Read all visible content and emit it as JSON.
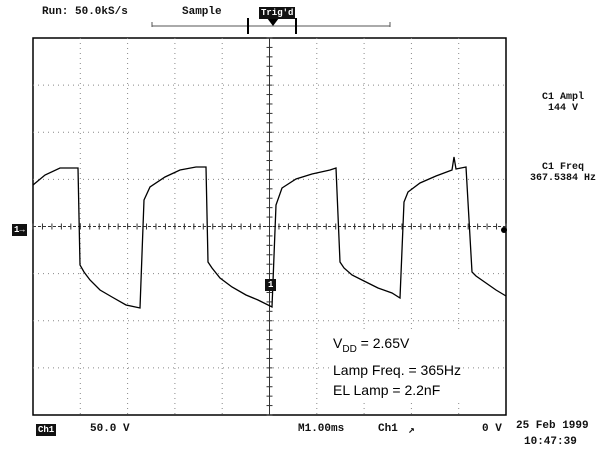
{
  "header": {
    "run_status": "Run: 50.0kS/s",
    "mode": "Sample",
    "trigger_badge": "Trig'd"
  },
  "channel_marker": "1→",
  "ch1_ground_marker": "1",
  "measurements": [
    {
      "label": "C1 Ampl",
      "value": "144 V"
    },
    {
      "label": "C1 Freq",
      "value": "367.5384 Hz"
    }
  ],
  "footer": {
    "channel_badge": "Ch1",
    "volts_per_div": "50.0 V",
    "timebase": "M1.00ms",
    "trigger_source": "Ch1",
    "trigger_slope": "↗",
    "trigger_level": "0 V",
    "date": "25 Feb 1999",
    "time": "10:47:39"
  },
  "annotation": {
    "vdd_prefix": "V",
    "vdd_sub": "DD",
    "vdd_value": " = 2.65V",
    "lamp_freq": "Lamp Freq. = 365Hz",
    "el_lamp": "EL Lamp = 2.2nF"
  }
}
